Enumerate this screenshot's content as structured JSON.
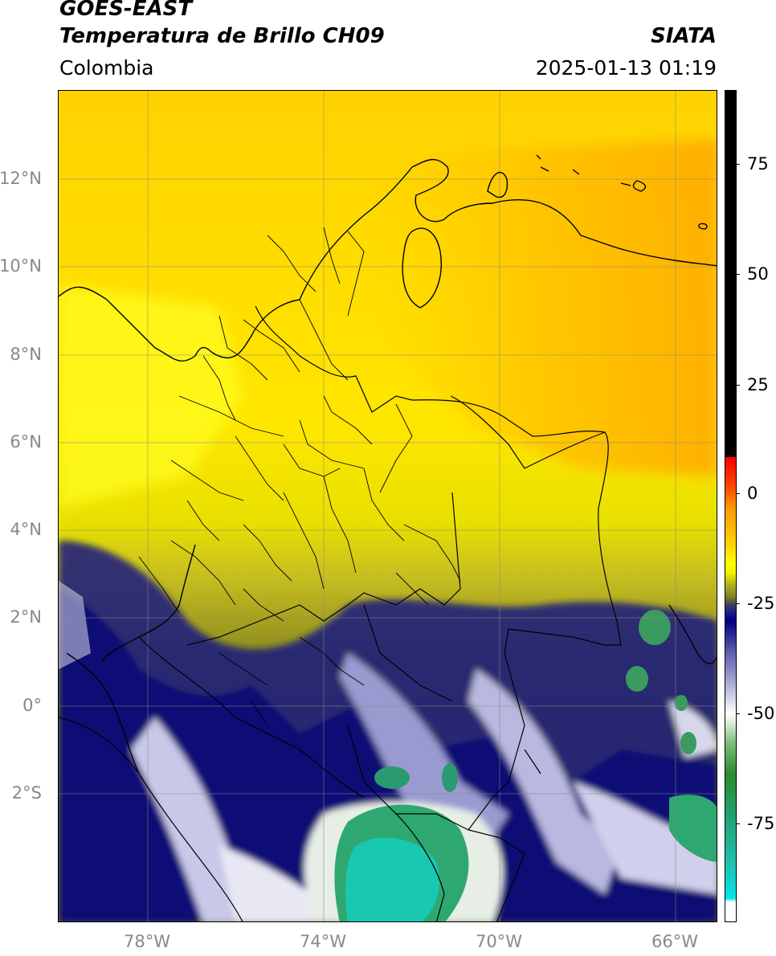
{
  "header": {
    "satellite": "GOES-EAST",
    "product": "Temperatura de Brillo CH09",
    "brand": "SIATA",
    "region": "Colombia",
    "datetime": "2025-01-13 01:19"
  },
  "axes": {
    "lat_ticks": [
      "12°N",
      "10°N",
      "8°N",
      "6°N",
      "4°N",
      "2°N",
      "0°",
      "2°S"
    ],
    "lon_ticks": [
      "78°W",
      "74°W",
      "70°W",
      "66°W"
    ]
  },
  "colorbar": {
    "labels": [
      "75",
      "50",
      "25",
      "0",
      "-25",
      "-50",
      "-75"
    ],
    "colors": {
      "positive": "#000000",
      "warm": "#ff0000",
      "yellow": "#ffff00",
      "olive": "#808000",
      "navy": "#000080",
      "white": "#ffffff",
      "green": "#2e8b2e",
      "cyan": "#00e5e5"
    }
  }
}
